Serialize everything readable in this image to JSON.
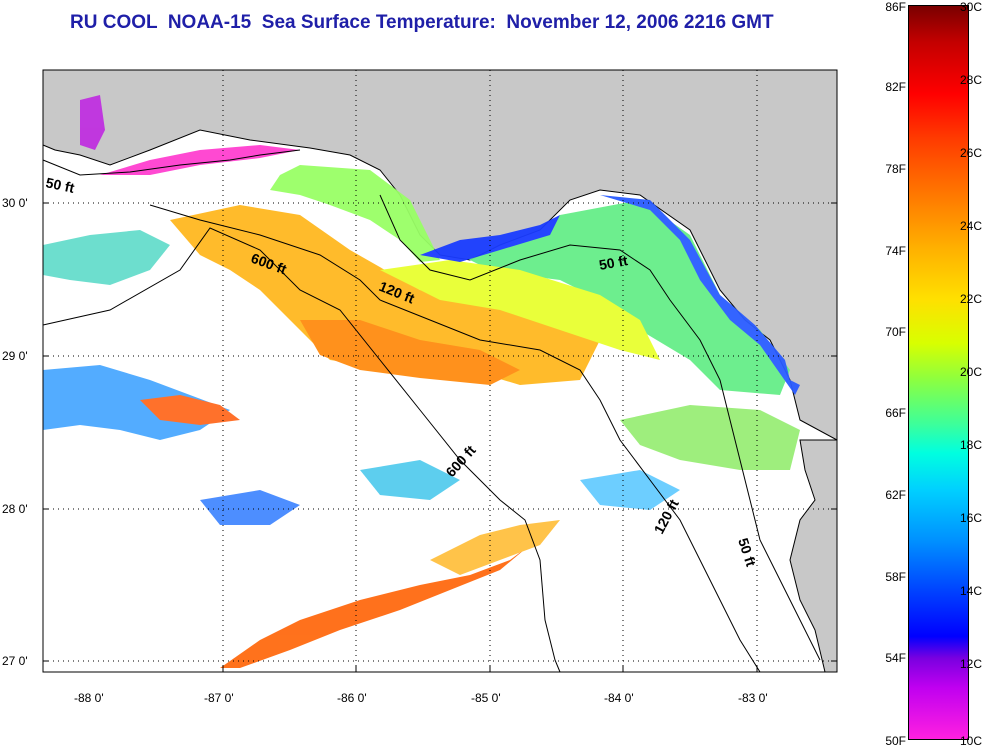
{
  "title": "RU COOL  NOAA-15  Sea Surface Temperature:  November 12, 2006 2216 GMT",
  "map": {
    "lat_ticks": [
      "30 0'",
      "29 0'",
      "28 0'",
      "27 0'"
    ],
    "lon_ticks": [
      "-88 0'",
      "-87 0'",
      "-86 0'",
      "-85 0'",
      "-84 0'",
      "-83 0'"
    ],
    "contour_labels": [
      "50 ft",
      "600 ft",
      "120 ft",
      "50 ft",
      "600 ft",
      "120 ft",
      "50 ft"
    ],
    "land_color": "#c8c8c8",
    "coast_color": "#000000"
  },
  "colorbar": {
    "fahrenheit": [
      "86F",
      "82F",
      "78F",
      "74F",
      "70F",
      "66F",
      "62F",
      "58F",
      "54F",
      "50F"
    ],
    "celsius": [
      "30C",
      "28C",
      "26C",
      "24C",
      "22C",
      "20C",
      "18C",
      "16C",
      "14C",
      "12C",
      "10C"
    ]
  }
}
